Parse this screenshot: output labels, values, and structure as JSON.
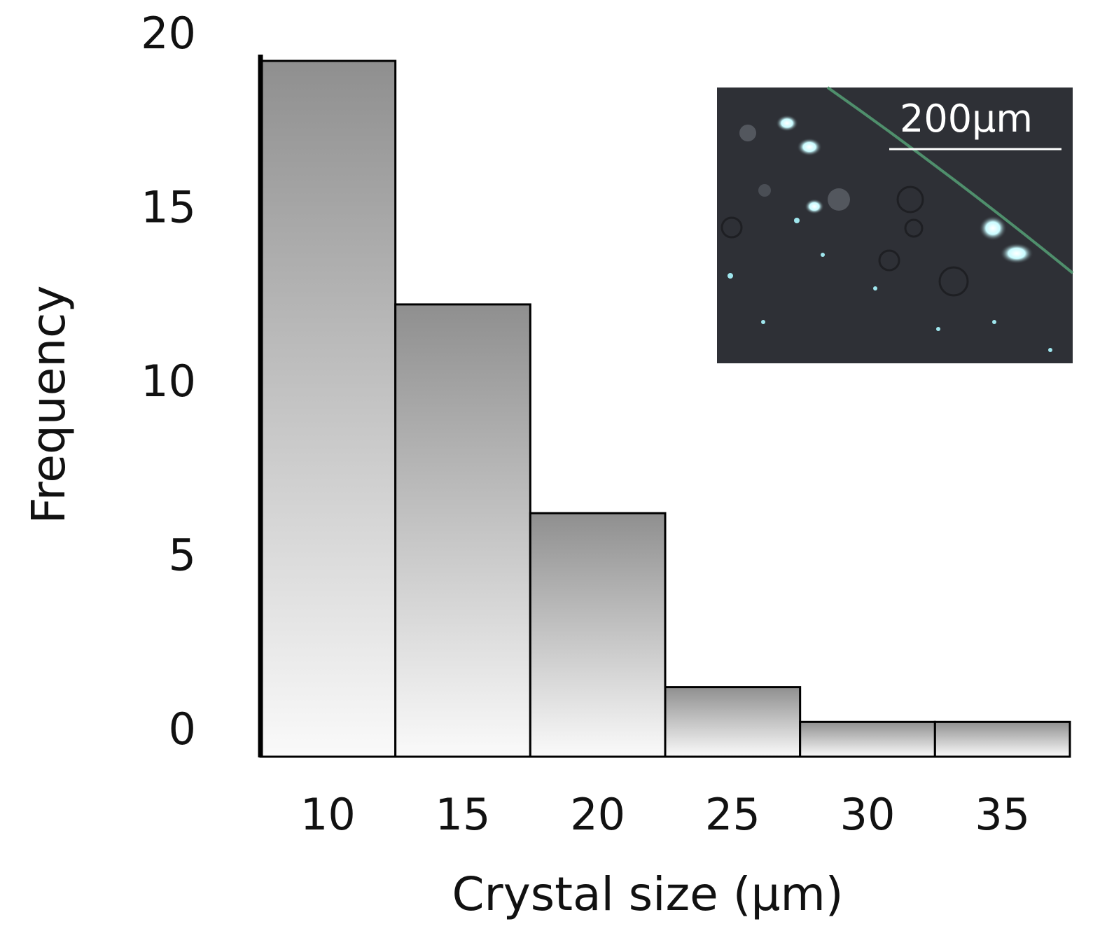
{
  "chart_data": {
    "type": "bar",
    "xlabel": "Crystal size (μm)",
    "ylabel": "Frequency",
    "categories": [
      "10",
      "15",
      "20",
      "25",
      "30",
      "35"
    ],
    "values": [
      20,
      13,
      7,
      2,
      1,
      1
    ],
    "ylim": [
      0,
      20
    ],
    "yticks": [
      "0",
      "5",
      "10",
      "15",
      "20"
    ],
    "grid": false,
    "bar_style": "gray vertical gradient with black outline",
    "colors": {
      "bar_dark": "#8f8f8f",
      "bar_light": "#fafafa",
      "axis": "#000000"
    }
  },
  "inset": {
    "description_icon": "micrograph-image",
    "scale_bar_label": "200μm",
    "background_color": "#2b2d33"
  }
}
